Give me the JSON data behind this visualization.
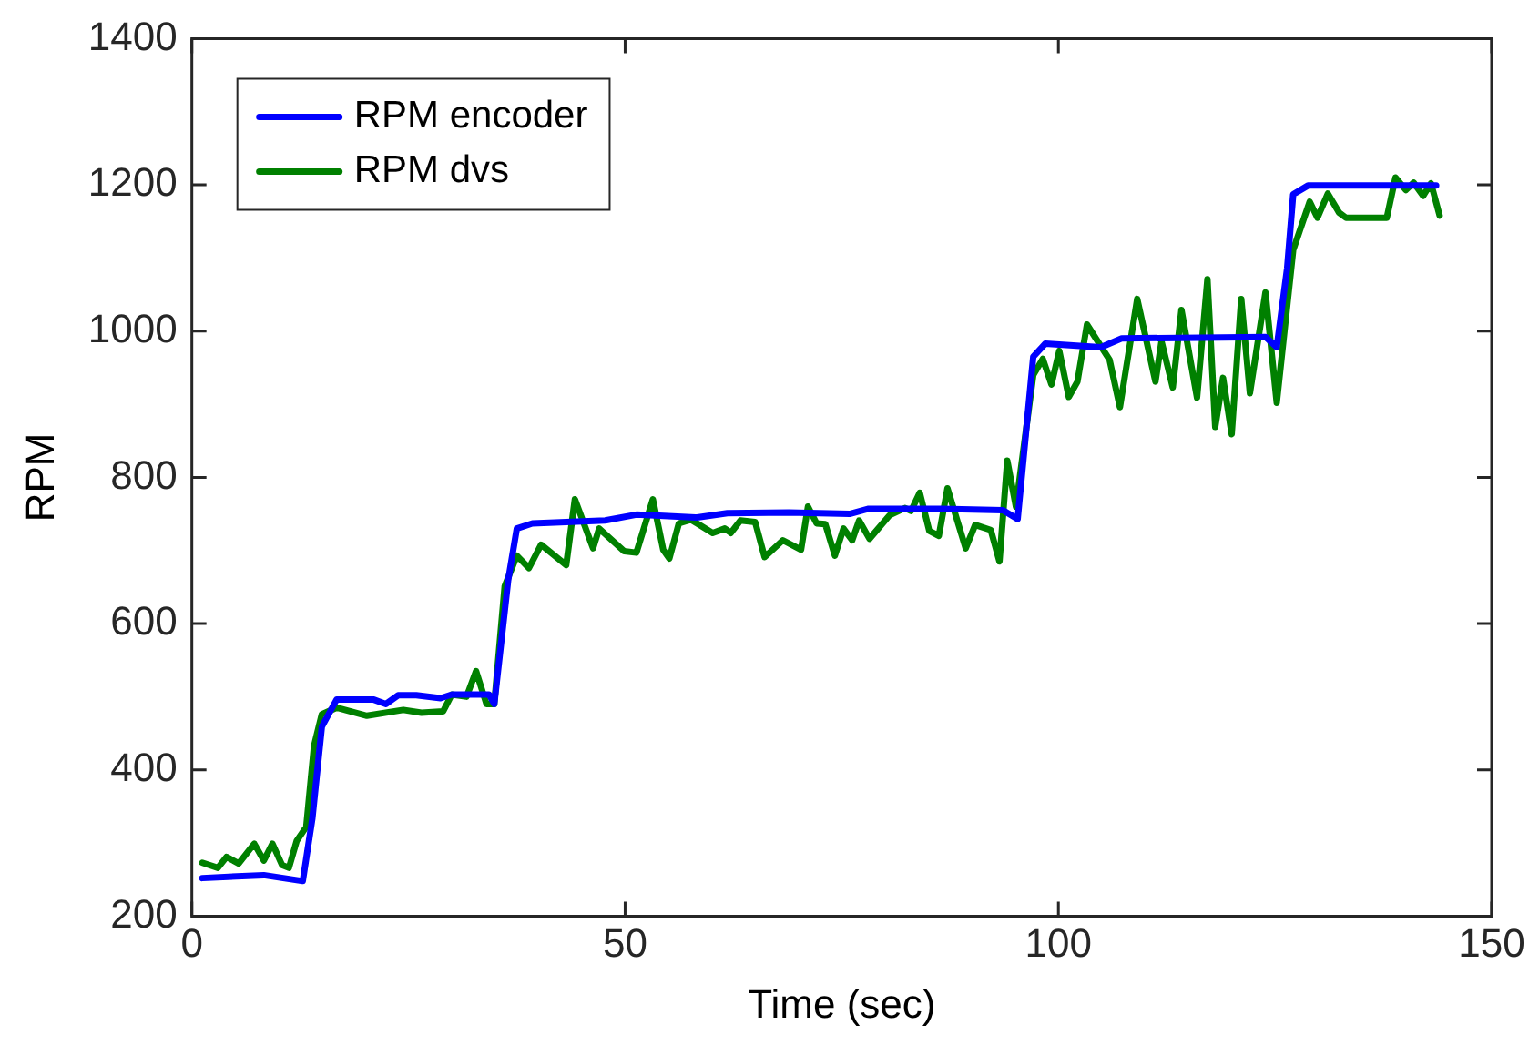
{
  "chart_data": {
    "type": "line",
    "xlabel": "Time (sec)",
    "ylabel": "RPM",
    "xlim": [
      0,
      150
    ],
    "xticks": [
      0,
      50,
      100,
      150
    ],
    "ylim": [
      200,
      1400
    ],
    "yticks": [
      200,
      400,
      600,
      800,
      1000,
      1200,
      1400
    ],
    "grid": false,
    "legend": "top left",
    "marker": "none",
    "line_style": "solid",
    "series": [
      {
        "name": "RPM encoder",
        "color": "#0000ff",
        "x": [
          1.2,
          8.3,
          12.8,
          13.9,
          15,
          16.7,
          21,
          22.4,
          23.8,
          25.9,
          28.7,
          30,
          34.3,
          34.9,
          36.5,
          37.5,
          39.3,
          47.7,
          51.3,
          58.3,
          61.8,
          68.9,
          75.9,
          78.1,
          86.5,
          93.6,
          95.3,
          97.1,
          98.5,
          104.9,
          107.3,
          123.9,
          125.2,
          126.4,
          127.1,
          128.8,
          143.6
        ],
        "values": [
          252,
          256,
          248,
          333,
          459,
          496,
          496,
          490,
          502,
          502,
          498,
          503,
          503,
          490,
          659,
          730,
          737,
          741,
          749,
          745,
          751,
          752,
          750,
          757,
          757,
          755,
          743,
          965,
          983,
          978,
          990,
          992,
          978,
          1086,
          1187,
          1199,
          1199
        ]
      },
      {
        "name": "RPM dvs",
        "color": "#008000",
        "x": [
          1.2,
          3.0,
          4.0,
          5.4,
          7.2,
          8.3,
          9.3,
          10.4,
          11.2,
          12.1,
          13.2,
          14.1,
          15,
          16.7,
          20.2,
          24.4,
          26.5,
          29,
          30,
          31.7,
          32.8,
          34,
          34.9,
          36.1,
          37.5,
          38.9,
          40.3,
          43.2,
          44.2,
          46.3,
          47,
          49.9,
          51.3,
          53.2,
          54.4,
          55.1,
          56.2,
          57.6,
          60.1,
          61.5,
          62.2,
          63.3,
          65,
          66.1,
          68.2,
          70.3,
          71.1,
          72.1,
          73.1,
          74.2,
          75.2,
          76.2,
          77,
          78.2,
          80.5,
          82.3,
          83,
          84,
          85.1,
          86.2,
          87.2,
          89.3,
          90.4,
          92.2,
          93.2,
          94.1,
          95.1,
          97.1,
          98.2,
          99.2,
          100.1,
          101.2,
          102.2,
          103.3,
          105.9,
          107.1,
          109.1,
          111.2,
          111.9,
          113.2,
          114.2,
          116,
          117.2,
          118.1,
          119,
          120,
          121.1,
          122.1,
          123.9,
          125.2,
          127.1,
          129,
          129.9,
          131.1,
          132.4,
          133.2,
          137.9,
          138.9,
          140.1,
          141,
          142.1,
          143,
          144
        ],
        "values": [
          273,
          266,
          281,
          272,
          299,
          276,
          299,
          270,
          266,
          303,
          322,
          433,
          476,
          485,
          474,
          482,
          478,
          480,
          503,
          500,
          535,
          490,
          490,
          651,
          693,
          676,
          708,
          680,
          770,
          703,
          730,
          699,
          697,
          770,
          701,
          689,
          737,
          742,
          724,
          730,
          724,
          741,
          739,
          691,
          714,
          701,
          760,
          737,
          736,
          693,
          730,
          714,
          741,
          716,
          748,
          758,
          754,
          779,
          727,
          720,
          785,
          703,
          735,
          728,
          685,
          823,
          760,
          940,
          962,
          927,
          973,
          910,
          931,
          1009,
          961,
          896,
          1044,
          931,
          986,
          923,
          1029,
          909,
          1071,
          869,
          936,
          859,
          1044,
          915,
          1053,
          902,
          1111,
          1177,
          1155,
          1188,
          1162,
          1155,
          1155,
          1210,
          1193,
          1203,
          1185,
          1202,
          1158
        ]
      }
    ]
  }
}
